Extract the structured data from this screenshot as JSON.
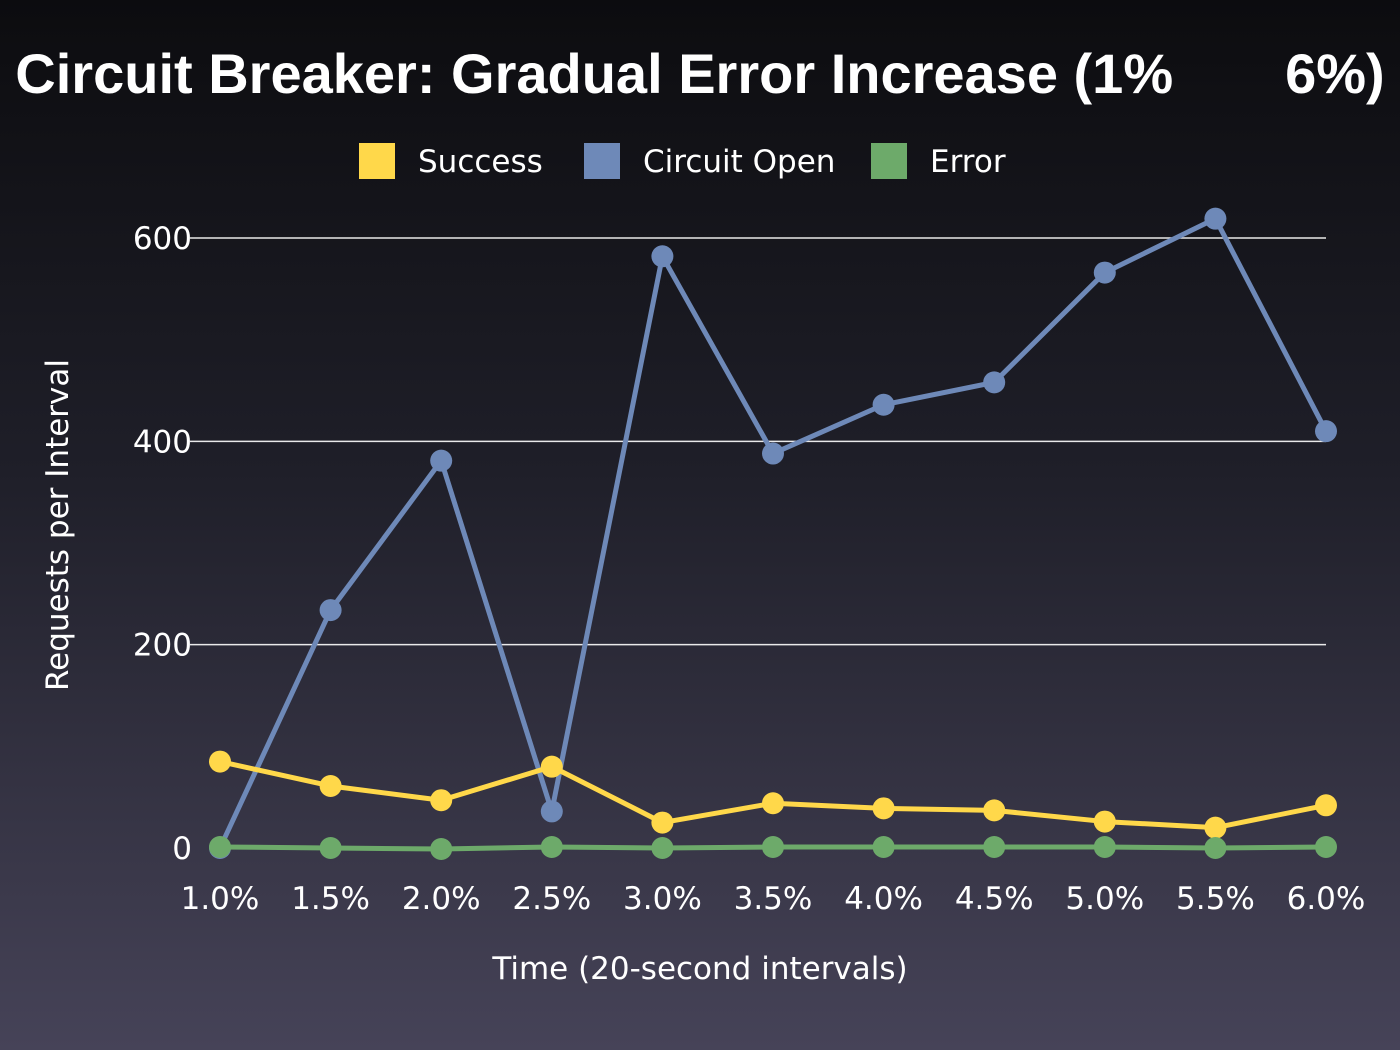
{
  "chart_data": {
    "type": "line",
    "title": "Circuit Breaker: Gradual Error Increase (1%  6%)",
    "xlabel": "Time (20-second intervals)",
    "ylabel": "Requests per Interval",
    "x": [
      "1.0%",
      "1.5%",
      "2.0%",
      "2.5%",
      "3.0%",
      "3.5%",
      "4.0%",
      "4.5%",
      "5.0%",
      "5.5%",
      "6.0%"
    ],
    "yticks": [
      "0",
      "200",
      "400",
      "600"
    ],
    "ylim": [
      0,
      600
    ],
    "grid": true,
    "legend_position": "top-center",
    "series": [
      {
        "name": "Success",
        "color": "#ffd84a",
        "values": [
          85,
          61,
          47,
          80,
          25,
          44,
          39,
          37,
          26,
          20,
          42
        ]
      },
      {
        "name": "Circuit Open",
        "color": "#6e89b8",
        "values": [
          0,
          234,
          381,
          36,
          582,
          388,
          436,
          458,
          566,
          619,
          410
        ]
      },
      {
        "name": "Error",
        "color": "#6daa6a",
        "values": [
          1,
          0,
          -1,
          1,
          0,
          1,
          1,
          1,
          1,
          0,
          1
        ]
      }
    ]
  }
}
